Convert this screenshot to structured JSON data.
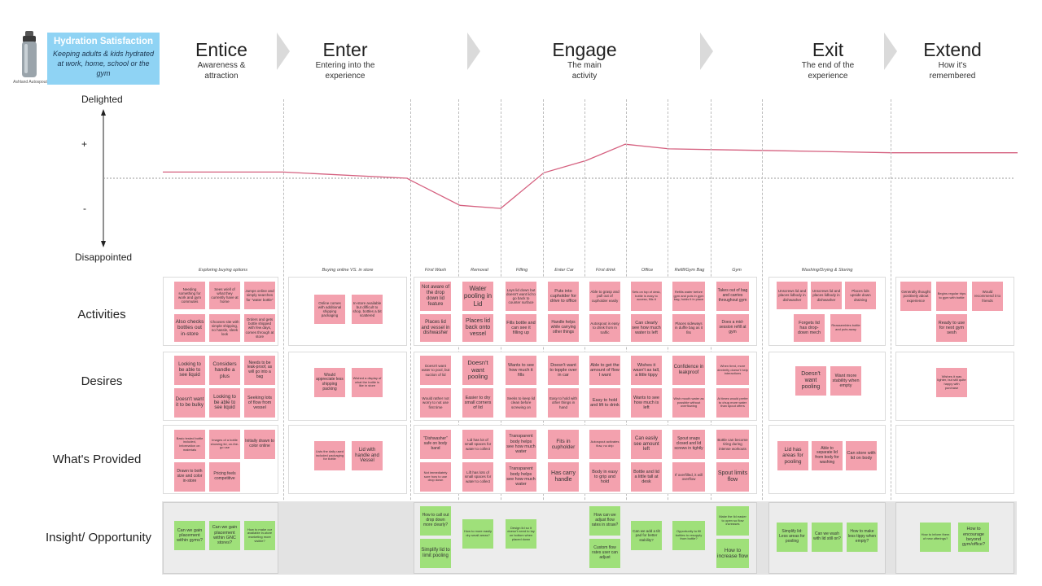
{
  "header": {
    "bottle_caption": "Ashland Autospout",
    "box_title": "Hydration Satisfaction",
    "box_subtitle": "Keeping adults & kids hydrated at work, home, school or the gym",
    "phases": [
      {
        "name": "Entice",
        "sub1": "Awareness &",
        "sub2": "attraction"
      },
      {
        "name": "Enter",
        "sub1": "Entering into the",
        "sub2": "experience"
      },
      {
        "name": "Engage",
        "sub1": "The main",
        "sub2": "activity"
      },
      {
        "name": "Exit",
        "sub1": "The end of the",
        "sub2": "experience"
      },
      {
        "name": "Extend",
        "sub1": "How it's",
        "sub2": "remembered"
      }
    ]
  },
  "emotion_axis": {
    "top": "Delighted",
    "plus": "+",
    "minus": "-",
    "bottom": "Disappointed"
  },
  "emotion_curve": {
    "colors": {
      "line": "#d5607f",
      "baseline": "#9a9a9a"
    },
    "scale": "neutral = 0, delighted = +1, disappointed = -1",
    "levels": {
      "entice": 0.08,
      "enter": 0.0,
      "first_wash": -0.03,
      "removal": -0.35,
      "filling": -0.39,
      "enter_car": 0.07,
      "first_drink": 0.23,
      "office": 0.44,
      "refill_gym_bag": 0.38,
      "gym": 0.37,
      "exit": 0.36,
      "extend": 0.33
    }
  },
  "column_headings": [
    "Exploring buying options",
    "Buying online VS. in store",
    "First Wash",
    "Removal",
    "Filling",
    "Enter Car",
    "First drink",
    "Office",
    "Refill/Gym Bag",
    "Gym",
    "Washing/Drying & Storing"
  ],
  "row_labels": [
    "Activities",
    "Desires",
    "What's Provided",
    "Insight/ Opportunity"
  ],
  "notes": {
    "activities": {
      "entice": [
        "Needing something for work and gym commutes",
        "Sees w/ell of what they currently have at home",
        "Jumps online and simply searches for \"water bottle\"",
        "Also checks bottles out in-store",
        "Chooses site with simple shipping, no hassle, sleek look",
        "Orders and gets bottle shipped with few days, comes through at store"
      ],
      "enter": [
        "Online comes with additional shipping packaging",
        "In-store available but difficult to shop, bottles a bit scattered"
      ],
      "first_wash": [
        "Not aware of the drop down lid feature",
        "Places lid and vessel in dishwasher"
      ],
      "removal": [
        "Water pooling in Lid",
        "Places lid back onto vessel"
      ],
      "filling": [
        "Lays lid down but doesn't want lid to go back to counter surface",
        "Fills bottle and can see it filling up"
      ],
      "enter_car": [
        "Puts into cupholder for drive to office",
        "Handle helps while carrying other things"
      ],
      "first_drink": [
        "Able to grasp and pull out of cupholder easily",
        "Autospout is easy to drink from in traffic"
      ],
      "office": [
        "Sets on top of desk, bottle is easy to access, fills it",
        "Can clearly see how much water is left"
      ],
      "refill_gym": [
        "Refills water before gym and puts in gym bag, holds it in place",
        "Places sideways in duffle bag as it fits"
      ],
      "gym": [
        "Takes out of bag and carries throughout gym",
        "Does a mid-session refill at gym"
      ],
      "exit": [
        "Unscrews lid and places lidbody in dishwasher",
        "Unscrews lid and places lidbody in dishwasher",
        "Places lids upside down draining",
        "Forgets lid has drop-down mech",
        "Reassembles bottle and puts away"
      ],
      "extend": [
        "Generally thought positively about experience",
        "Begins regular trips to gym with bottle",
        "Would recommend it to friends",
        "Ready to use for next gym sesh"
      ]
    },
    "desires": {
      "entice": [
        "Looking to be able to see liquid",
        "Considers handle a plus",
        "Needs to be leak-proof, as will go into a bag",
        "Doesn't want it to be bulky",
        "Looking to be able to see liquid",
        "Seeking lots of flow from vessel"
      ],
      "enter": [
        "Would appreciate less shipping packing",
        "Wished a display of what the bottle is like in store"
      ],
      "first_wash": [
        "Doesn't want water to pool, but suction of lid",
        "Would rather not worry to not use first time"
      ],
      "removal": [
        "Doesn't want pooling",
        "Easier to dry small corners of lid"
      ],
      "filling": [
        "Wants to see how much it fills",
        "Seeks to keep lid clean before screwing on"
      ],
      "enter_car": [
        "Doesn't want to topple over in car",
        "Easy to hold with other things in hand"
      ],
      "first_drink": [
        "Able to get the amount of flow I want",
        "Easy to hold and lift to drink"
      ],
      "office": [
        "Wishes it wasn't as tall, a little tippy",
        "Wants to see how much is left"
      ],
      "refill_gym": [
        "Confidence in leakproof",
        "Wish mouth water as possible without overflowing"
      ],
      "gym": [
        "When tired, more dexterity doesn't help interactions",
        "At times would prefer to chug more water than spout offers"
      ],
      "exit": [
        "Doesn't want pooling",
        "Want more stability when empty"
      ],
      "extend": [
        "Wishes it was lighter, but still quite happy with purchase"
      ]
    },
    "provided": {
      "entice": [
        "Basic tested bottle included, information on materials",
        "Images of a bottle showing lid, on-the-go use",
        "Initially drawn to color online",
        "Drawn to both size and color in-store",
        "Pricing feels competitive"
      ],
      "enter": [
        "Lists the daily used included packaging for bottle",
        "Lid with handle and Vessel"
      ],
      "first_wash": [
        "\"Dishwasher\" safe on body band",
        "Not immediately sure how to use drop down"
      ],
      "removal": [
        "Lid has lot of small spaces for water to collect",
        "Lift has lots of small spaces for water to collect"
      ],
      "filling": [
        "Transparent body helps see how much water",
        "Transparent body helps see how much water"
      ],
      "enter_car": [
        "Fits in cupholder",
        "Has carry handle"
      ],
      "first_drink": [
        "Autospout activates flow, no drip",
        "Body in easy to grip and hold"
      ],
      "office": [
        "Can easily see amount left",
        "Bottle and lid a little tall at desk"
      ],
      "refill_gym": [
        "Spout snaps closed and lid screws in tightly",
        "If overfilled, it will overflow"
      ],
      "gym": [
        "Bottle can become tiring during intense workouts",
        "Spout limits flow"
      ],
      "exit": [
        "Lid has areas for pooling",
        "Able to separate lid from body for washing",
        "Can store with lid on body"
      ]
    },
    "insight": {
      "entice": [
        "Can we gain placement within gyms?",
        "Can we gain placement within GNC stores?",
        "How to make our available in-store marketing more visible?"
      ],
      "first_wash": [
        "How to call out drop down more clearly?",
        "Simplify lid to limit pooling"
      ],
      "removal": [
        "How to more easily dry small areas?"
      ],
      "filling": [
        "Design lid so it doesn't need to lay on bottom when placed down"
      ],
      "first_drink": [
        "How can we adjust flow rates in straw?",
        "Custom flow rates user can adjust"
      ],
      "office": [
        "Can we add a tilt pad for better stability?"
      ],
      "refill_gym": [
        "Opportunity to fill bottles to resupply from bottle?"
      ],
      "gym": [
        "Make the lid easier to open so flow increases",
        "How to increase flow"
      ],
      "exit": [
        "Simplify lid: Less areas for pooling",
        "Can we wash with lid still on?",
        "How to make less tippy when empty?"
      ],
      "extend": [
        "How to inform them of new offerings?",
        "How to encourage beyond gym/office?"
      ]
    }
  }
}
